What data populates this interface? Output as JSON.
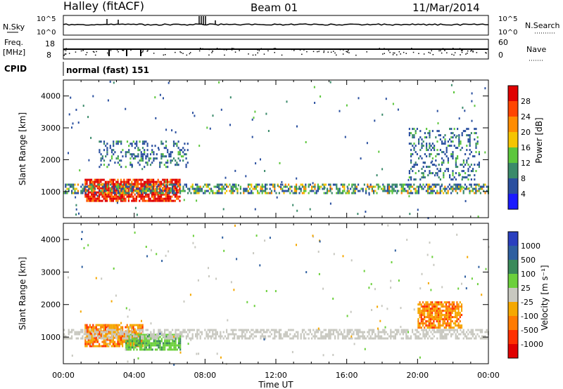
{
  "header": {
    "station": "Halley (fitACF)",
    "beam": "Beam 01",
    "date": "11/Mar/2014"
  },
  "strips": {
    "nsky": {
      "label": "N.Sky",
      "ticks": [
        "10^5",
        "10^0"
      ]
    },
    "nsearch": {
      "label": "N.Search",
      "ticks": [
        "10^5",
        "10^0"
      ]
    },
    "freq": {
      "label": "Freq.",
      "unit": "[MHz]",
      "ticks": [
        "18",
        "8"
      ]
    },
    "nave": {
      "label": "Nave",
      "ticks": [
        "60",
        "0"
      ]
    },
    "cpid": {
      "label": "CPID",
      "value": "normal (fast) 151"
    }
  },
  "colors": {
    "power": [
      "#1a1aff",
      "#2a4f9f",
      "#3a8a6a",
      "#5cc63c",
      "#f5c400",
      "#ff8c00",
      "#ff4500",
      "#e00000"
    ],
    "velocity": [
      "#2a3fbf",
      "#2e5fa0",
      "#3a8a5a",
      "#6cd03c",
      "#c8c8c0",
      "#f5a800",
      "#ff7a00",
      "#ff3000",
      "#e00000"
    ]
  },
  "chart_data": [
    {
      "type": "heatmap",
      "title": "Power",
      "xlabel": "",
      "ylabel": "Slant Range [km]",
      "x_ticks": [
        "00:00",
        "04:00",
        "08:00",
        "12:00",
        "16:00",
        "20:00",
        "00:00"
      ],
      "y_ticks": [
        "1000",
        "2000",
        "3000",
        "4000"
      ],
      "xlim": [
        0,
        24
      ],
      "ylim": [
        180,
        4500
      ],
      "colorbar": {
        "label": "Power [dB]",
        "ticks": [
          "4",
          "8",
          "12",
          "16",
          "20",
          "24",
          "28"
        ]
      },
      "bands": [
        {
          "t": [
            1.2,
            6.6
          ],
          "r": [
            700,
            1400
          ],
          "level": "strong"
        },
        {
          "t": [
            0.0,
            24.0
          ],
          "r": [
            950,
            1250
          ],
          "level": "medium"
        },
        {
          "t": [
            2.0,
            7.0
          ],
          "r": [
            1800,
            2600
          ],
          "level": "weak"
        },
        {
          "t": [
            19.5,
            23.5
          ],
          "r": [
            1400,
            3000
          ],
          "level": "weak"
        }
      ]
    },
    {
      "type": "heatmap",
      "title": "Velocity",
      "xlabel": "Time UT",
      "ylabel": "Slant Range [km]",
      "x_ticks": [
        "00:00",
        "04:00",
        "08:00",
        "12:00",
        "16:00",
        "20:00",
        "00:00"
      ],
      "y_ticks": [
        "1000",
        "2000",
        "3000",
        "4000"
      ],
      "xlim": [
        0,
        24
      ],
      "ylim": [
        180,
        4500
      ],
      "colorbar": {
        "label": "Velocity [m s⁻¹]",
        "ticks": [
          "1000",
          "500",
          "100",
          "25",
          "-25",
          "-100",
          "-500",
          "-1000"
        ]
      },
      "bands": [
        {
          "t": [
            1.2,
            4.5
          ],
          "r": [
            700,
            1400
          ],
          "level": "receding"
        },
        {
          "t": [
            3.5,
            6.6
          ],
          "r": [
            600,
            1100
          ],
          "level": "approaching"
        },
        {
          "t": [
            0.0,
            24.0
          ],
          "r": [
            950,
            1250
          ],
          "level": "ground"
        },
        {
          "t": [
            20.0,
            22.5
          ],
          "r": [
            1300,
            2100
          ],
          "level": "receding"
        }
      ]
    }
  ]
}
